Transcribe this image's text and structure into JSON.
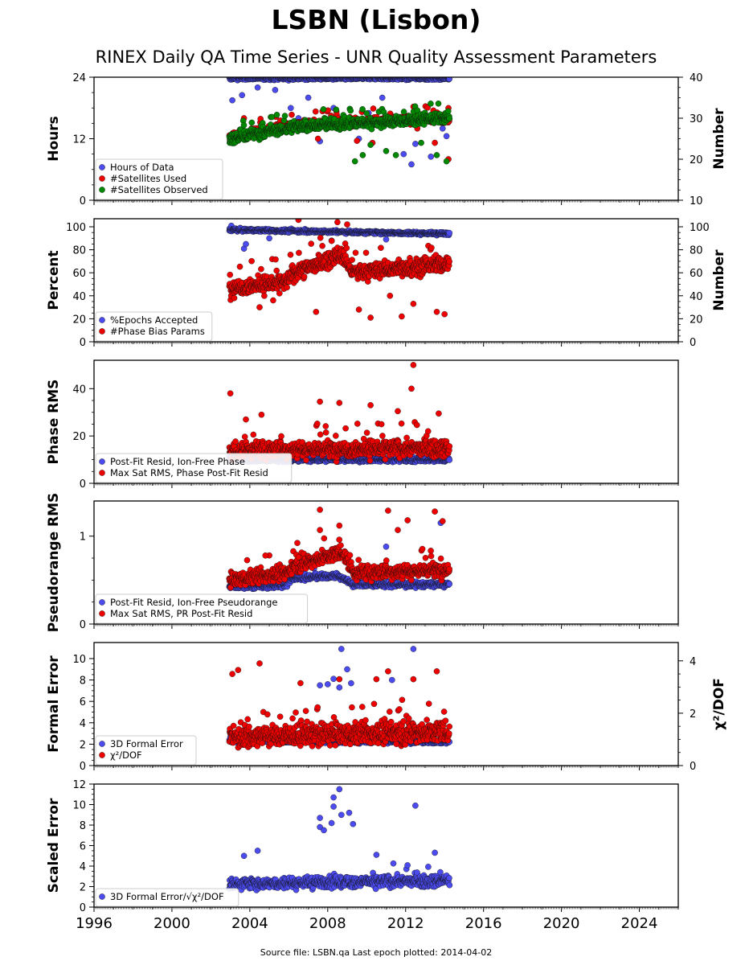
{
  "page": {
    "title": "LSBN (Lisbon)",
    "subtitle": "RINEX Daily QA Time Series - UNR Quality Assessment Parameters",
    "footer": "Source file: LSBN.qa Last epoch plotted: 2014-04-02"
  },
  "x_axis": {
    "xlim": [
      1996,
      2026
    ],
    "ticks": [
      1996,
      2000,
      2004,
      2008,
      2012,
      2016,
      2020,
      2024
    ],
    "tick_labels": [
      "1996",
      "2000",
      "2004",
      "2008",
      "2012",
      "2016",
      "2020",
      "2024"
    ],
    "data_start": 2002.95,
    "data_end": 2014.25
  },
  "colors": {
    "blue": "#4b4bf0",
    "red": "#ee0000",
    "green": "#008800",
    "edge": "#111111"
  },
  "chart_data": [
    {
      "type": "scatter",
      "ylabel": "Hours",
      "ylim": [
        0,
        24
      ],
      "yticks": [
        0,
        12,
        24
      ],
      "y2label": "Number",
      "y2lim": [
        10,
        40
      ],
      "y2ticks": [
        10,
        20,
        30,
        40
      ],
      "legend_position": "lower-left",
      "series": [
        {
          "name": "Hours of Data",
          "color": "#4b4bf0",
          "axis": "left",
          "baseline": [
            [
              2002.95,
              23.8
            ],
            [
              2014.25,
              23.8
            ]
          ],
          "spread": 0.3,
          "outlier_rate": 0.12,
          "outliers": [
            [
              2003.1,
              19.5
            ],
            [
              2003.6,
              20.5
            ],
            [
              2004.4,
              22.0
            ],
            [
              2005.3,
              21.5
            ],
            [
              2006.1,
              18.0
            ],
            [
              2006.5,
              16.0
            ],
            [
              2007.0,
              20.0
            ],
            [
              2007.6,
              11.5
            ],
            [
              2008.3,
              18.0
            ],
            [
              2008.8,
              15.5
            ],
            [
              2009.6,
              12.0
            ],
            [
              2010.1,
              17.0
            ],
            [
              2010.8,
              20.0
            ],
            [
              2011.2,
              16.0
            ],
            [
              2011.9,
              9.0
            ],
            [
              2012.3,
              7.0
            ],
            [
              2012.5,
              11.0
            ],
            [
              2013.3,
              8.5
            ],
            [
              2013.9,
              14.0
            ],
            [
              2014.1,
              12.5
            ]
          ]
        },
        {
          "name": "#Satellites Used",
          "color": "#ee0000",
          "axis": "right",
          "baseline": [
            [
              2002.95,
              25.5
            ],
            [
              2005.9,
              28.0
            ],
            [
              2006.3,
              28.5
            ],
            [
              2014.25,
              30.0
            ]
          ],
          "spread": 1.0,
          "outlier_rate": 0.03,
          "outliers": [
            [
              2003.7,
              30.0
            ],
            [
              2007.5,
              25.0
            ],
            [
              2009.5,
              24.5
            ],
            [
              2010.3,
              24.0
            ],
            [
              2012.6,
              27.5
            ],
            [
              2013.5,
              24.0
            ],
            [
              2014.2,
              20.0
            ]
          ]
        },
        {
          "name": "#Satellites Observed",
          "color": "#008800",
          "axis": "right",
          "baseline": [
            [
              2002.95,
              25.0
            ],
            [
              2005.9,
              27.5
            ],
            [
              2006.3,
              28.0
            ],
            [
              2014.25,
              30.0
            ]
          ],
          "spread": 1.2,
          "outlier_rate": 0.1,
          "outliers": [
            [
              2009.4,
              19.5
            ],
            [
              2009.8,
              21.0
            ],
            [
              2010.2,
              23.5
            ],
            [
              2011.0,
              22.0
            ],
            [
              2011.5,
              21.0
            ],
            [
              2012.8,
              24.0
            ],
            [
              2013.6,
              21.0
            ],
            [
              2014.1,
              19.5
            ]
          ]
        }
      ]
    },
    {
      "type": "scatter",
      "ylabel": "Percent",
      "ylim": [
        0,
        107
      ],
      "yticks": [
        0,
        20,
        40,
        60,
        80,
        100
      ],
      "y2label": "Number",
      "y2lim": [
        0,
        107
      ],
      "y2ticks": [
        0,
        20,
        40,
        60,
        80,
        100
      ],
      "legend_position": "lower-left",
      "series": [
        {
          "name": "%Epochs Accepted",
          "color": "#4b4bf0",
          "axis": "left",
          "baseline": [
            [
              2002.95,
              97.5
            ],
            [
              2005.5,
              96.5
            ],
            [
              2014.25,
              94.0
            ]
          ],
          "spread": 1.3,
          "outlier_rate": 0.02,
          "outliers": [
            [
              2003.7,
              81.0
            ],
            [
              2003.8,
              85.0
            ],
            [
              2005.0,
              90.0
            ],
            [
              2008.2,
              88.0
            ],
            [
              2011.0,
              89.0
            ]
          ]
        },
        {
          "name": "#Phase Bias Params",
          "color": "#ee0000",
          "axis": "right",
          "baseline": [
            [
              2002.95,
              47.0
            ],
            [
              2005.9,
              52.0
            ],
            [
              2006.2,
              60.0
            ],
            [
              2008.7,
              75.0
            ],
            [
              2009.3,
              60.0
            ],
            [
              2014.25,
              68.0
            ]
          ],
          "spread": 7.0,
          "outlier_rate": 0.05,
          "outliers": [
            [
              2003.2,
              38.0
            ],
            [
              2004.5,
              30.0
            ],
            [
              2005.2,
              36.0
            ],
            [
              2006.5,
              106.0
            ],
            [
              2007.4,
              26.0
            ],
            [
              2008.5,
              104.0
            ],
            [
              2009.0,
              102.0
            ],
            [
              2009.6,
              28.0
            ],
            [
              2010.2,
              21.0
            ],
            [
              2011.2,
              40.0
            ],
            [
              2011.8,
              22.0
            ],
            [
              2012.4,
              33.0
            ],
            [
              2013.6,
              26.0
            ],
            [
              2014.0,
              24.0
            ]
          ]
        }
      ]
    },
    {
      "type": "scatter",
      "ylabel": "Phase RMS",
      "ylim": [
        0,
        52
      ],
      "yticks": [
        0,
        20,
        40
      ],
      "legend_position": "lower-left",
      "series": [
        {
          "name": "Post-Fit Resid, Ion-Free Phase",
          "color": "#4b4bf0",
          "axis": "left",
          "baseline": [
            [
              2002.95,
              10.0
            ],
            [
              2014.25,
              10.0
            ]
          ],
          "spread": 0.9,
          "outlier_rate": 0.0,
          "outliers": []
        },
        {
          "name": "Max Sat RMS, Phase Post-Fit Resid",
          "color": "#ee0000",
          "axis": "left",
          "baseline": [
            [
              2002.95,
              14.0
            ],
            [
              2014.25,
              15.0
            ]
          ],
          "spread": 3.5,
          "outlier_rate": 0.04,
          "outliers": [
            [
              2003.0,
              38.0
            ],
            [
              2003.8,
              27.0
            ],
            [
              2004.6,
              29.0
            ],
            [
              2007.6,
              34.5
            ],
            [
              2008.6,
              34.0
            ],
            [
              2010.2,
              33.0
            ],
            [
              2011.6,
              30.5
            ],
            [
              2012.3,
              40.0
            ],
            [
              2012.4,
              50.0
            ],
            [
              2013.7,
              29.5
            ]
          ]
        }
      ]
    },
    {
      "type": "scatter",
      "ylabel": "Pseudorange RMS",
      "ylim": [
        0,
        1.4
      ],
      "yticks": [
        0,
        1
      ],
      "legend_position": "lower-left",
      "series": [
        {
          "name": "Post-Fit Resid, Ion-Free Pseudorange",
          "color": "#4b4bf0",
          "axis": "left",
          "baseline": [
            [
              2002.95,
              0.42
            ],
            [
              2005.9,
              0.44
            ],
            [
              2006.1,
              0.52
            ],
            [
              2008.5,
              0.55
            ],
            [
              2009.3,
              0.45
            ],
            [
              2014.25,
              0.45
            ]
          ],
          "spread": 0.03,
          "outlier_rate": 0.01,
          "outliers": [
            [
              2011.0,
              0.88
            ],
            [
              2013.8,
              1.15
            ]
          ]
        },
        {
          "name": "Max Sat RMS, PR Post-Fit Resid",
          "color": "#ee0000",
          "axis": "left",
          "baseline": [
            [
              2002.95,
              0.5
            ],
            [
              2005.9,
              0.58
            ],
            [
              2006.1,
              0.65
            ],
            [
              2008.8,
              0.82
            ],
            [
              2009.3,
              0.58
            ],
            [
              2014.25,
              0.62
            ]
          ],
          "spread": 0.08,
          "outlier_rate": 0.04,
          "outliers": [
            [
              2004.8,
              0.78
            ],
            [
              2007.6,
              1.07
            ],
            [
              2007.6,
              1.3
            ],
            [
              2008.6,
              1.12
            ],
            [
              2011.1,
              1.29
            ],
            [
              2011.6,
              1.07
            ],
            [
              2012.1,
              1.18
            ],
            [
              2013.5,
              1.28
            ],
            [
              2013.9,
              1.17
            ]
          ]
        }
      ]
    },
    {
      "type": "scatter",
      "ylabel": "Formal Error",
      "ylim": [
        0,
        11.5
      ],
      "yticks": [
        0,
        2,
        4,
        6,
        8,
        10
      ],
      "y2label": "χ²/DOF",
      "y2lim": [
        0,
        4.7
      ],
      "y2ticks": [
        0,
        2,
        4
      ],
      "legend_position": "lower-left",
      "series": [
        {
          "name": "3D Formal Error",
          "color": "#4b4bf0",
          "axis": "left",
          "baseline": [
            [
              2002.95,
              2.3
            ],
            [
              2014.25,
              2.2
            ]
          ],
          "spread": 0.15,
          "outlier_rate": 0.01,
          "outliers": [
            [
              2007.6,
              7.5
            ],
            [
              2008.0,
              7.6
            ],
            [
              2008.3,
              8.1
            ],
            [
              2008.6,
              7.3
            ],
            [
              2008.7,
              10.9
            ],
            [
              2009.0,
              9.0
            ],
            [
              2009.2,
              7.7
            ],
            [
              2011.3,
              8.0
            ],
            [
              2012.4,
              10.9
            ]
          ]
        },
        {
          "name": "χ²/DOF",
          "color": "#ee0000",
          "axis": "right",
          "baseline": [
            [
              2002.95,
              1.1
            ],
            [
              2014.25,
              1.3
            ]
          ],
          "spread": 0.4,
          "outlier_rate": 0.05,
          "outliers": [
            [
              2003.1,
              3.5
            ],
            [
              2003.4,
              3.65
            ],
            [
              2004.5,
              3.9
            ],
            [
              2006.6,
              3.15
            ],
            [
              2008.6,
              3.3
            ],
            [
              2010.5,
              3.3
            ],
            [
              2011.1,
              3.6
            ],
            [
              2012.4,
              3.3
            ],
            [
              2013.6,
              3.6
            ]
          ]
        }
      ]
    },
    {
      "type": "scatter",
      "ylabel": "Scaled Error",
      "ylim": [
        0,
        12
      ],
      "yticks": [
        0,
        2,
        4,
        6,
        8,
        10,
        12
      ],
      "legend_position": "lower-left",
      "series": [
        {
          "name": "3D Formal Error/√χ²/DOF",
          "color": "#4b4bf0",
          "axis": "left",
          "baseline": [
            [
              2002.95,
              2.3
            ],
            [
              2014.25,
              2.6
            ]
          ],
          "spread": 0.55,
          "outlier_rate": 0.02,
          "outliers": [
            [
              2003.7,
              5.0
            ],
            [
              2004.4,
              5.5
            ],
            [
              2007.6,
              7.8
            ],
            [
              2007.6,
              8.7
            ],
            [
              2007.8,
              7.5
            ],
            [
              2008.2,
              8.2
            ],
            [
              2008.3,
              9.8
            ],
            [
              2008.3,
              10.7
            ],
            [
              2008.6,
              11.5
            ],
            [
              2008.7,
              9.0
            ],
            [
              2009.1,
              9.2
            ],
            [
              2009.3,
              8.1
            ],
            [
              2010.5,
              5.1
            ],
            [
              2012.5,
              9.9
            ],
            [
              2013.5,
              5.3
            ]
          ]
        }
      ]
    }
  ]
}
